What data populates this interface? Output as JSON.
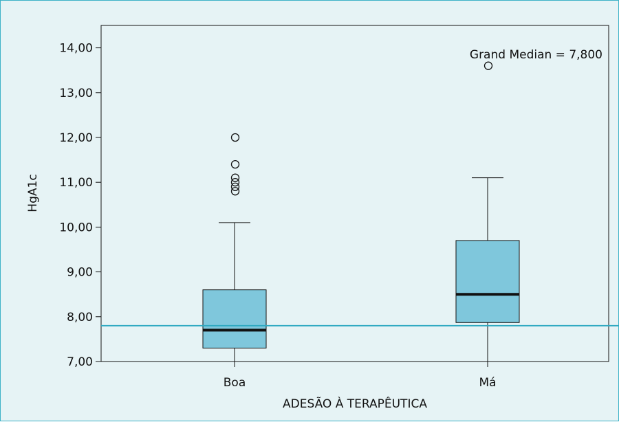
{
  "chart_data": {
    "type": "box",
    "xlabel": "ADESÃO À TERAPÊUTICA",
    "ylabel": "HgA1c",
    "ylim": [
      7.0,
      14.5
    ],
    "yticks": [
      7,
      8,
      9,
      10,
      11,
      12,
      13,
      14
    ],
    "ytick_labels": [
      "7,00",
      "8,00",
      "9,00",
      "10,00",
      "11,00",
      "12,00",
      "13,00",
      "14,00"
    ],
    "categories": [
      "Boa",
      "Má"
    ],
    "boxes": [
      {
        "category": "Boa",
        "whisker_low": 7.0,
        "q1": 7.3,
        "median": 7.7,
        "q3": 8.6,
        "whisker_high": 10.1,
        "outliers": [
          10.8,
          10.9,
          11.0,
          11.1,
          11.4,
          12.0
        ]
      },
      {
        "category": "Má",
        "whisker_low": 7.0,
        "q1": 7.87,
        "median": 8.5,
        "q3": 9.7,
        "whisker_high": 11.1,
        "outliers": [
          13.6
        ]
      }
    ],
    "reference_line": {
      "value": 7.8,
      "label": "Grand Median = 7,800"
    },
    "grid": false,
    "colors": {
      "box_fill": "#7fc7dc",
      "plot_bg": "#e6f3f5",
      "reference_line": "#2fa9c1",
      "median_line": "#111111",
      "frame_border": "#3bb1c6"
    }
  }
}
